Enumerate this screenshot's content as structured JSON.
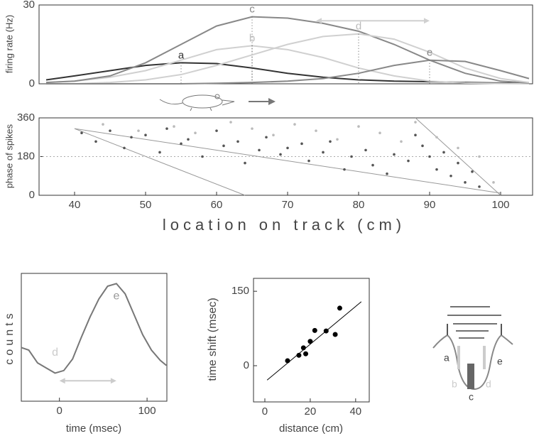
{
  "chart_data": [
    {
      "type": "line",
      "ylabel": "firing rate (Hz)",
      "xlim": [
        35,
        104.5
      ],
      "ylim": [
        0,
        30
      ],
      "yticks": [
        0,
        30
      ],
      "x": [
        36,
        40,
        45,
        50,
        55,
        60,
        65,
        70,
        75,
        80,
        85,
        90,
        95,
        100,
        104
      ],
      "series": [
        {
          "name": "a",
          "color": "#333333",
          "values": [
            1.5,
            3,
            5,
            7,
            8,
            7.7,
            6,
            4,
            2.5,
            1.5,
            1,
            0.8,
            0.5,
            0.3,
            0.2
          ]
        },
        {
          "name": "b",
          "color": "#d0d0d0",
          "values": [
            0.5,
            1,
            2.5,
            5,
            9,
            13,
            14.5,
            13,
            10,
            6,
            3,
            1,
            0.3,
            0.1,
            0
          ]
        },
        {
          "name": "c",
          "color": "#888888",
          "values": [
            0.5,
            1,
            3,
            8,
            15,
            22,
            25.5,
            25,
            23,
            20,
            15,
            9,
            4,
            1,
            0.3
          ]
        },
        {
          "name": "d",
          "color": "#d0d0d0",
          "values": [
            0,
            0,
            0.5,
            1.5,
            3.5,
            7,
            11,
            15,
            18,
            19,
            17,
            12,
            6,
            2,
            0.5
          ]
        },
        {
          "name": "e",
          "color": "#888888",
          "values": [
            0,
            0,
            0,
            0,
            0,
            0.2,
            0.5,
            1,
            2,
            4,
            7,
            9,
            8.5,
            5,
            2
          ]
        }
      ],
      "arrow": {
        "x": [
          74,
          90
        ],
        "y": 24,
        "color": "#d0d0d0"
      }
    },
    {
      "type": "scatter",
      "xlabel": "location on track (cm)",
      "ylabel": "phase of spikes",
      "xlim": [
        35,
        104.5
      ],
      "ylim": [
        0,
        360
      ],
      "xticks": [
        40,
        50,
        60,
        70,
        80,
        90,
        100
      ],
      "yticks": [
        0,
        180,
        360
      ],
      "hline": 180,
      "series": [
        {
          "color": "#555555",
          "x": [
            41,
            43,
            45,
            47,
            48,
            50,
            52,
            53,
            55,
            56,
            58,
            60,
            61,
            63,
            64,
            66,
            67,
            69,
            70,
            72,
            73,
            75,
            76,
            78,
            79,
            81,
            82,
            84,
            85,
            87,
            88,
            89,
            90,
            91,
            92,
            93,
            94,
            95,
            96,
            97
          ],
          "values": [
            290,
            250,
            300,
            220,
            270,
            280,
            200,
            310,
            240,
            260,
            180,
            300,
            230,
            250,
            150,
            210,
            270,
            190,
            220,
            240,
            160,
            200,
            250,
            120,
            180,
            210,
            140,
            100,
            190,
            160,
            280,
            230,
            180,
            120,
            200,
            90,
            150,
            60,
            110,
            40
          ]
        },
        {
          "color": "#bbbbbb",
          "x": [
            44,
            49,
            54,
            57,
            62,
            65,
            68,
            71,
            74,
            77,
            80,
            83,
            86,
            88,
            91,
            94,
            97,
            99
          ],
          "values": [
            330,
            300,
            320,
            290,
            340,
            310,
            280,
            330,
            300,
            260,
            320,
            290,
            250,
            340,
            270,
            220,
            180,
            60
          ]
        }
      ],
      "fit_lines": [
        {
          "x": [
            40,
            64
          ],
          "values": [
            310,
            0
          ]
        },
        {
          "x": [
            40,
            100
          ],
          "values": [
            310,
            10
          ]
        },
        {
          "x": [
            88,
            100
          ],
          "values": [
            360,
            0
          ]
        }
      ],
      "fit_color": "#999999"
    },
    {
      "type": "line",
      "xlabel": "time (msec)",
      "ylabel": "counts",
      "xlim": [
        -43.5,
        122.6
      ],
      "ylim": [
        0,
        1
      ],
      "xticks": [
        0,
        100
      ],
      "x": [
        -43.5,
        -35,
        -25,
        -15,
        -5,
        5,
        15,
        25,
        35,
        45,
        55,
        65,
        75,
        85,
        95,
        105,
        115,
        122
      ],
      "series": [
        {
          "color": "#777777",
          "values": [
            0.42,
            0.4,
            0.3,
            0.26,
            0.22,
            0.24,
            0.33,
            0.5,
            0.66,
            0.8,
            0.9,
            0.92,
            0.84,
            0.68,
            0.52,
            0.4,
            0.32,
            0.28
          ]
        }
      ],
      "annotations": [
        {
          "text": "d",
          "x": -5,
          "y": 0.38,
          "color": "#cccccc"
        },
        {
          "text": "e",
          "x": 65,
          "y": 0.82,
          "color": "#999999"
        }
      ],
      "arrow": {
        "x": [
          0,
          65
        ],
        "y": 0.16,
        "color": "#cccccc"
      }
    },
    {
      "type": "scatter",
      "xlabel": "distance (cm)",
      "ylabel": "time shift (msec)",
      "xlim": [
        -5,
        46
      ],
      "ylim": [
        -73,
        176
      ],
      "xticks": [
        0,
        20,
        40
      ],
      "yticks": [
        0,
        150
      ],
      "series": [
        {
          "color": "#000000",
          "x": [
            10,
            15,
            17,
            18,
            20,
            22,
            27,
            31,
            33
          ],
          "values": [
            10,
            21,
            36,
            24,
            49,
            71,
            70,
            63,
            116
          ]
        }
      ],
      "fit_lines": [
        {
          "x": [
            1,
            42.5
          ],
          "values": [
            -29,
            129
          ]
        }
      ],
      "fit_color": "#000000"
    }
  ],
  "diagram": {
    "labels": [
      "a",
      "b",
      "c",
      "d",
      "e"
    ]
  }
}
